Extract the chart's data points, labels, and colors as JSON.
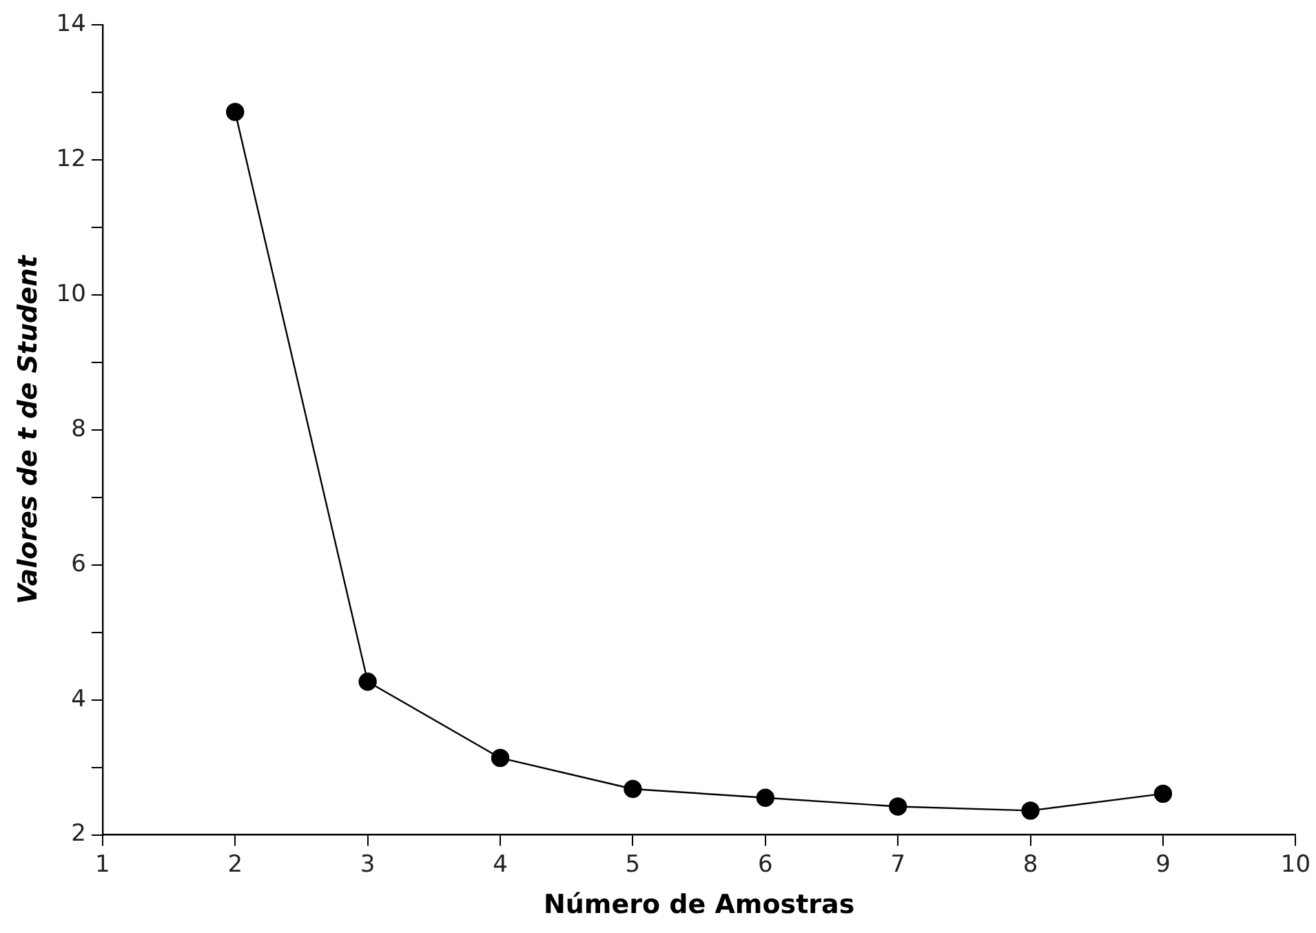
{
  "chart_data": {
    "type": "line",
    "xlabel": "Número de Amostras",
    "ylabel": "Valores de t de Student",
    "x": [
      2,
      3,
      4,
      5,
      6,
      7,
      8,
      9
    ],
    "series": [
      {
        "color": "#000000",
        "values": [
          12.71,
          4.27,
          3.14,
          2.68,
          2.55,
          2.42,
          2.36,
          2.61
        ]
      }
    ],
    "xlim": [
      1,
      10
    ],
    "xticks": [
      1,
      2,
      3,
      4,
      5,
      6,
      7,
      8,
      9,
      10
    ],
    "ylim": [
      2,
      14
    ],
    "yticks": [
      2,
      {
        "value": 3,
        "label": null
      },
      4,
      {
        "value": 5,
        "label": null
      },
      6,
      {
        "value": 7,
        "label": null
      },
      8,
      {
        "value": 9,
        "label": null
      },
      10,
      {
        "value": 11,
        "label": null
      },
      12,
      {
        "value": 13,
        "label": null
      },
      14
    ],
    "grid": false,
    "legend": false,
    "marker": "circle",
    "line_style": "solid"
  }
}
